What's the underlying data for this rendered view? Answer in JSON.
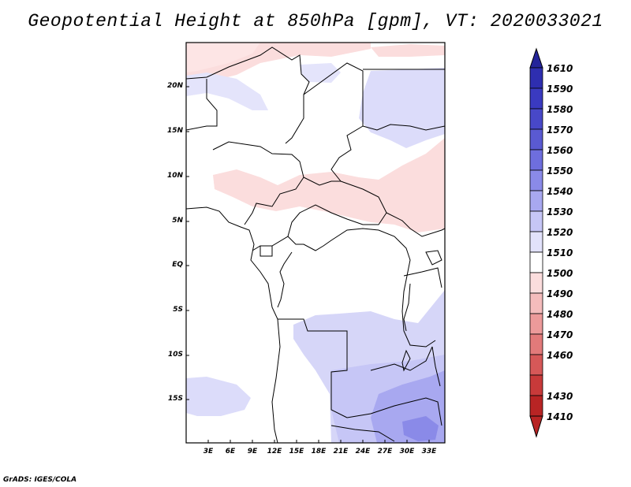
{
  "title": "Geopotential Height at 850hPa [gpm], VT: 2020033021",
  "credit": "GrADS: IGES/COLA",
  "map": {
    "lat_ticks": [
      "20N",
      "15N",
      "10N",
      "5N",
      "EQ",
      "5S",
      "10S",
      "15S"
    ],
    "lon_ticks": [
      "3E",
      "6E",
      "9E",
      "12E",
      "15E",
      "18E",
      "21E",
      "24E",
      "27E",
      "30E",
      "33E"
    ]
  },
  "colorbar": {
    "labels": [
      "1610",
      "1590",
      "1580",
      "1570",
      "1560",
      "1550",
      "1540",
      "1530",
      "1520",
      "1510",
      "1500",
      "1490",
      "1480",
      "1470",
      "1460",
      "1430",
      "1410"
    ],
    "colors": [
      "#24249a",
      "#2e2eb0",
      "#3a3ac0",
      "#4848c8",
      "#5a5ad2",
      "#6e6ede",
      "#8a8ae8",
      "#a8a8f0",
      "#c6c6f6",
      "#e2e2fb",
      "#ffffff",
      "#fbdddd",
      "#f4bcbc",
      "#ec9a9a",
      "#e27a7a",
      "#d65858",
      "#c83a3a",
      "#b82424"
    ]
  }
}
